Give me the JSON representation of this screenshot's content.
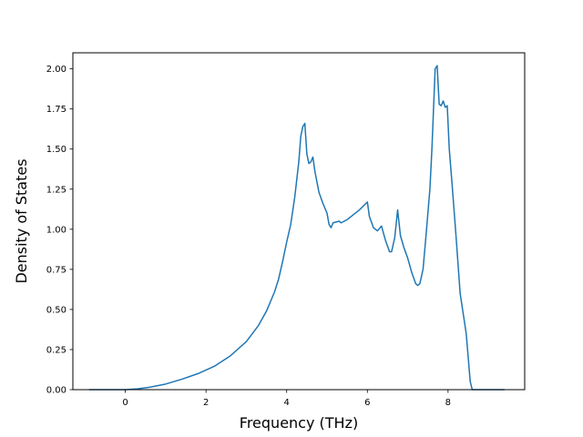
{
  "chart_data": {
    "type": "line",
    "title": "",
    "xlabel": "Frequency (THz)",
    "ylabel": "Density of States",
    "xlim": [
      -1.3,
      9.9
    ],
    "ylim": [
      0,
      2.1
    ],
    "xticks": [
      0,
      2,
      4,
      6,
      8
    ],
    "xtick_labels": [
      "0",
      "2",
      "4",
      "6",
      "8"
    ],
    "yticks": [
      0,
      0.25,
      0.5,
      0.75,
      1.0,
      1.25,
      1.5,
      1.75,
      2.0
    ],
    "ytick_labels": [
      "0.00",
      "0.25",
      "0.50",
      "0.75",
      "1.00",
      "1.25",
      "1.50",
      "1.75",
      "2.00"
    ],
    "grid": false,
    "series": [
      {
        "color": "#1f77b4",
        "x": [
          -0.9,
          -0.5,
          0.0,
          0.3,
          0.6,
          1.0,
          1.4,
          1.8,
          2.2,
          2.6,
          3.0,
          3.3,
          3.5,
          3.7,
          3.8,
          3.9,
          4.0,
          4.1,
          4.2,
          4.3,
          4.35,
          4.4,
          4.45,
          4.5,
          4.55,
          4.6,
          4.65,
          4.7,
          4.8,
          4.9,
          5.0,
          5.05,
          5.1,
          5.15,
          5.3,
          5.35,
          5.5,
          5.6,
          5.7,
          5.8,
          6.0,
          6.05,
          6.15,
          6.25,
          6.35,
          6.45,
          6.55,
          6.6,
          6.68,
          6.75,
          6.82,
          6.9,
          7.0,
          7.1,
          7.2,
          7.25,
          7.3,
          7.38,
          7.45,
          7.55,
          7.6,
          7.68,
          7.73,
          7.78,
          7.83,
          7.88,
          7.93,
          7.98,
          8.03,
          8.1,
          8.2,
          8.3,
          8.45,
          8.55,
          8.6,
          9.0,
          9.4
        ],
        "y": [
          0.0,
          0.0,
          0.0,
          0.005,
          0.015,
          0.035,
          0.065,
          0.1,
          0.145,
          0.21,
          0.3,
          0.4,
          0.49,
          0.61,
          0.69,
          0.8,
          0.92,
          1.03,
          1.2,
          1.42,
          1.58,
          1.64,
          1.66,
          1.47,
          1.41,
          1.42,
          1.45,
          1.36,
          1.23,
          1.16,
          1.1,
          1.03,
          1.01,
          1.04,
          1.05,
          1.04,
          1.06,
          1.08,
          1.1,
          1.12,
          1.17,
          1.08,
          1.01,
          0.99,
          1.02,
          0.93,
          0.86,
          0.86,
          0.95,
          1.12,
          0.96,
          0.89,
          0.82,
          0.73,
          0.66,
          0.65,
          0.66,
          0.75,
          0.95,
          1.25,
          1.5,
          2.0,
          2.02,
          1.78,
          1.77,
          1.8,
          1.76,
          1.77,
          1.5,
          1.28,
          0.95,
          0.6,
          0.35,
          0.05,
          0.0,
          0.0,
          0.0
        ]
      }
    ]
  }
}
